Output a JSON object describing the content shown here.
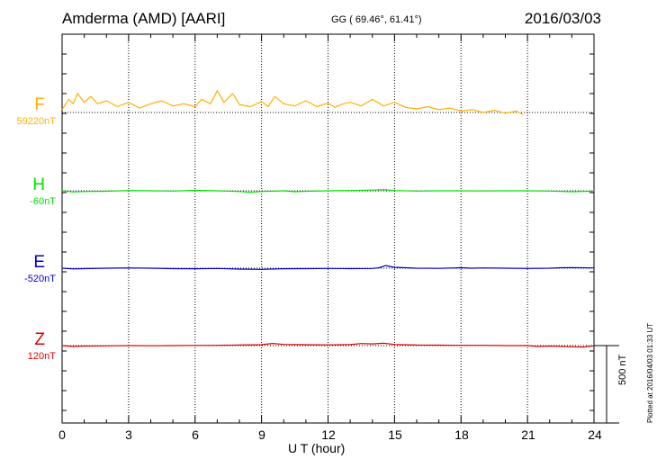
{
  "header": {
    "station": "Amderma (AMD)  [AARI]",
    "coords": "GG ( 69.46°,  61.41°)",
    "date": "2016/03/03"
  },
  "xlabel": "U T (hour)",
  "scale_label": "500 nT",
  "plotted_note": "Plotted at 2016/04/03 01:33 UT",
  "chart_data": {
    "type": "line",
    "xlim": [
      0,
      24
    ],
    "x_ticks": [
      "0",
      "3",
      "6",
      "9",
      "12",
      "15",
      "18",
      "21",
      "24"
    ],
    "scale_bar_nT": 500,
    "grid": true,
    "series": [
      {
        "name": "F",
        "baseline_label": "59220nT",
        "color": "#ffb000",
        "t": [
          0,
          0.3,
          0.5,
          0.7,
          1,
          1.3,
          1.6,
          2,
          2.5,
          3,
          3.5,
          4,
          4.5,
          5,
          5.5,
          6,
          6.3,
          6.7,
          7,
          7.3,
          7.7,
          8,
          8.5,
          9,
          9.3,
          9.6,
          10,
          10.5,
          11,
          11.5,
          12,
          12.3,
          12.6,
          13,
          13.5,
          14,
          14.5,
          15,
          15.5,
          16,
          16.5,
          17,
          17.5,
          18,
          18.5,
          19,
          19.5,
          20,
          20.5,
          20.8
        ],
        "v": [
          20,
          90,
          60,
          130,
          70,
          110,
          60,
          80,
          40,
          70,
          30,
          60,
          80,
          45,
          60,
          40,
          90,
          60,
          150,
          70,
          130,
          55,
          40,
          75,
          40,
          110,
          60,
          45,
          80,
          40,
          65,
          35,
          55,
          70,
          45,
          90,
          45,
          70,
          35,
          25,
          40,
          20,
          30,
          10,
          20,
          0,
          15,
          -5,
          10,
          -15
        ]
      },
      {
        "name": "H",
        "baseline_label": "-60nT",
        "color": "#00e000",
        "t": [
          0,
          0.5,
          1,
          2,
          3,
          4,
          5,
          6,
          7,
          8,
          8.5,
          9,
          10,
          10.5,
          11,
          12,
          13,
          14,
          14.5,
          15,
          16,
          17,
          18,
          19,
          20,
          21,
          22,
          23,
          23.5,
          24
        ],
        "v": [
          0,
          -8,
          -5,
          -3,
          2,
          0,
          -2,
          3,
          0,
          -5,
          -10,
          -5,
          0,
          -6,
          -3,
          0,
          2,
          5,
          8,
          2,
          -2,
          0,
          0,
          -1,
          0,
          0,
          -2,
          -6,
          -4,
          -3
        ]
      },
      {
        "name": "E",
        "baseline_label": "-520nT",
        "color": "#0000cc",
        "t": [
          0,
          0.5,
          1,
          2,
          3,
          4,
          5,
          6,
          7,
          8,
          9,
          10,
          11,
          12,
          13,
          14,
          14.3,
          14.6,
          15,
          16,
          17,
          18,
          18.5,
          19,
          20,
          21,
          22,
          22.5,
          23,
          24
        ],
        "v": [
          0,
          -5,
          -3,
          0,
          2,
          0,
          -3,
          -4,
          -2,
          -6,
          -8,
          -4,
          -3,
          -2,
          -3,
          -2,
          3,
          18,
          6,
          0,
          -1,
          3,
          0,
          2,
          0,
          -2,
          0,
          3,
          4,
          2
        ]
      },
      {
        "name": "Z",
        "baseline_label": "120nT",
        "color": "#dd0000",
        "t": [
          0,
          0.5,
          1,
          2,
          3,
          4,
          5,
          6,
          7,
          8,
          9,
          9.5,
          10,
          11,
          12,
          13,
          13.5,
          14,
          14.5,
          15,
          16,
          17,
          18,
          19,
          20,
          21,
          21.5,
          22,
          23,
          23.5,
          24
        ],
        "v": [
          0,
          -6,
          -3,
          -2,
          0,
          -1,
          0,
          1,
          2,
          4,
          6,
          15,
          8,
          6,
          5,
          7,
          14,
          12,
          16,
          8,
          4,
          3,
          2,
          2,
          0,
          0,
          -6,
          -3,
          -8,
          -10,
          -2
        ]
      }
    ]
  }
}
